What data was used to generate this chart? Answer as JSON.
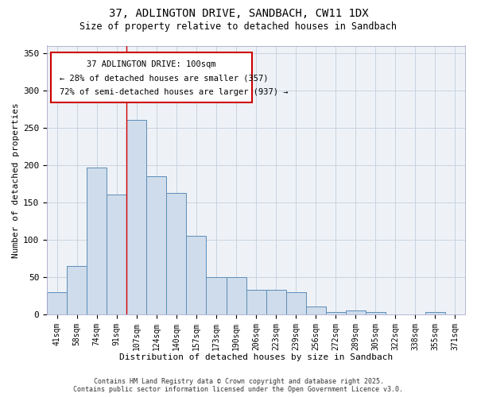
{
  "title": "37, ADLINGTON DRIVE, SANDBACH, CW11 1DX",
  "subtitle": "Size of property relative to detached houses in Sandbach",
  "xlabel": "Distribution of detached houses by size in Sandbach",
  "ylabel": "Number of detached properties",
  "categories": [
    "41sqm",
    "58sqm",
    "74sqm",
    "91sqm",
    "107sqm",
    "124sqm",
    "140sqm",
    "157sqm",
    "173sqm",
    "190sqm",
    "206sqm",
    "223sqm",
    "239sqm",
    "256sqm",
    "272sqm",
    "289sqm",
    "305sqm",
    "322sqm",
    "338sqm",
    "355sqm",
    "371sqm"
  ],
  "values": [
    30,
    65,
    197,
    160,
    260,
    185,
    163,
    105,
    50,
    50,
    33,
    33,
    30,
    10,
    3,
    5,
    3,
    0,
    0,
    3,
    0
  ],
  "bar_color": "#cfdceb",
  "bar_edge_color": "#5b8db8",
  "annotation_line1": "37 ADLINGTON DRIVE: 100sqm",
  "annotation_line2": "← 28% of detached houses are smaller (357)",
  "annotation_line3": "72% of semi-detached houses are larger (937) →",
  "vline_color": "#cc0000",
  "vline_x": 3.5,
  "grid_color": "#c8d4e0",
  "bg_color": "#eef2f7",
  "footer_line1": "Contains HM Land Registry data © Crown copyright and database right 2025.",
  "footer_line2": "Contains public sector information licensed under the Open Government Licence v3.0.",
  "ylim": [
    0,
    360
  ],
  "yticks": [
    0,
    50,
    100,
    150,
    200,
    250,
    300,
    350
  ]
}
